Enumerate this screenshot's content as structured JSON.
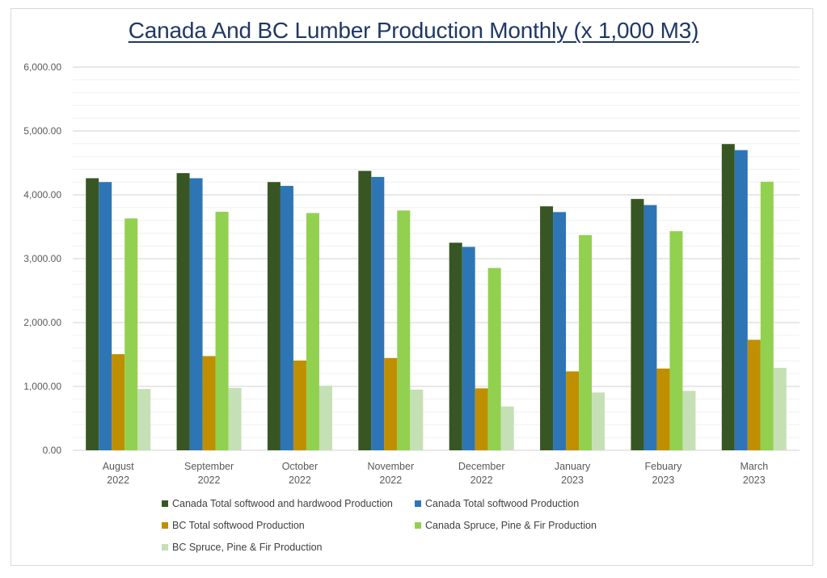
{
  "chart_data": {
    "type": "bar",
    "title": "Canada And BC Lumber Production Monthly (x 1,000 M3)",
    "xlabel": "",
    "ylabel": "",
    "ylim": [
      0,
      6000
    ],
    "yticks": [
      "0.00",
      "1,000.00",
      "2,000.00",
      "3,000.00",
      "4,000.00",
      "5,000.00",
      "6,000.00"
    ],
    "ytick_values": [
      0,
      1000,
      2000,
      3000,
      4000,
      5000,
      6000
    ],
    "minor_grid_step": 200,
    "grid": true,
    "legend_position": "bottom",
    "categories": [
      [
        "August",
        "2022"
      ],
      [
        "September",
        "2022"
      ],
      [
        "October",
        "2022"
      ],
      [
        "November",
        "2022"
      ],
      [
        "December",
        "2022"
      ],
      [
        "January",
        "2023"
      ],
      [
        "Febuary",
        "2023"
      ],
      [
        "March",
        "2023"
      ]
    ],
    "series": [
      {
        "name": "Canada Total softwood and hardwood Production",
        "color": "#375623",
        "values": [
          4260,
          4340,
          4200,
          4375,
          3250,
          3820,
          3935,
          4795
        ]
      },
      {
        "name": "Canada Total softwood Production",
        "color": "#2e75b6",
        "values": [
          4200,
          4260,
          4140,
          4280,
          3185,
          3730,
          3840,
          4700
        ]
      },
      {
        "name": "BC Total softwood Production",
        "color": "#bf8f00",
        "values": [
          1505,
          1475,
          1405,
          1445,
          970,
          1235,
          1280,
          1730
        ]
      },
      {
        "name": "Canada Spruce, Pine & Fir Production",
        "color": "#92d050",
        "values": [
          3630,
          3735,
          3715,
          3755,
          2855,
          3370,
          3430,
          4205
        ]
      },
      {
        "name": "BC Spruce, Pine & Fir Production",
        "color": "#c5e0b4",
        "values": [
          960,
          975,
          1010,
          950,
          685,
          905,
          930,
          1290
        ]
      }
    ]
  }
}
